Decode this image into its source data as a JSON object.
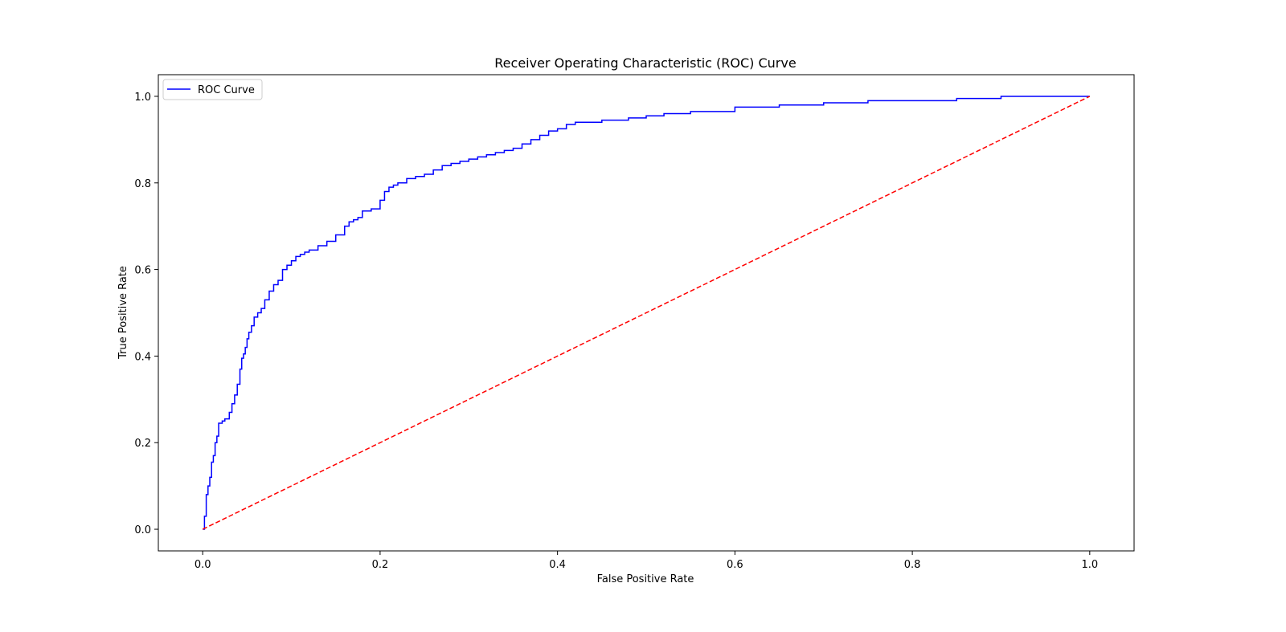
{
  "chart_data": {
    "type": "line",
    "title": "Receiver Operating Characteristic (ROC) Curve",
    "xlabel": "False Positive Rate",
    "ylabel": "True Positive Rate",
    "xlim": [
      -0.05,
      1.05
    ],
    "ylim": [
      -0.05,
      1.05
    ],
    "xticks": [
      0.0,
      0.2,
      0.4,
      0.6,
      0.8,
      1.0
    ],
    "xtick_labels": [
      "0.0",
      "0.2",
      "0.4",
      "0.6",
      "0.8",
      "1.0"
    ],
    "yticks": [
      0.0,
      0.2,
      0.4,
      0.6,
      0.8,
      1.0
    ],
    "ytick_labels": [
      "0.0",
      "0.2",
      "0.4",
      "0.6",
      "0.8",
      "1.0"
    ],
    "grid": false,
    "legend": {
      "placement": "upper-left",
      "entries": [
        "ROC Curve"
      ]
    },
    "series": [
      {
        "name": "ROC Curve",
        "color": "#0000ff",
        "style": "solid",
        "x": [
          0.0,
          0.002,
          0.004,
          0.006,
          0.008,
          0.01,
          0.012,
          0.014,
          0.016,
          0.018,
          0.02,
          0.022,
          0.025,
          0.03,
          0.033,
          0.036,
          0.039,
          0.042,
          0.044,
          0.046,
          0.048,
          0.05,
          0.052,
          0.055,
          0.058,
          0.062,
          0.066,
          0.07,
          0.075,
          0.08,
          0.085,
          0.09,
          0.095,
          0.1,
          0.105,
          0.11,
          0.115,
          0.12,
          0.13,
          0.14,
          0.15,
          0.16,
          0.165,
          0.17,
          0.175,
          0.18,
          0.19,
          0.2,
          0.205,
          0.21,
          0.215,
          0.22,
          0.23,
          0.24,
          0.25,
          0.26,
          0.27,
          0.28,
          0.29,
          0.3,
          0.31,
          0.32,
          0.33,
          0.34,
          0.35,
          0.36,
          0.37,
          0.38,
          0.39,
          0.4,
          0.41,
          0.42,
          0.45,
          0.48,
          0.5,
          0.52,
          0.55,
          0.6,
          0.65,
          0.7,
          0.75,
          0.8,
          0.85,
          0.9,
          1.0
        ],
        "y": [
          0.0,
          0.03,
          0.08,
          0.1,
          0.12,
          0.155,
          0.17,
          0.2,
          0.215,
          0.245,
          0.245,
          0.25,
          0.255,
          0.27,
          0.29,
          0.31,
          0.335,
          0.37,
          0.395,
          0.405,
          0.42,
          0.44,
          0.455,
          0.47,
          0.49,
          0.5,
          0.51,
          0.53,
          0.55,
          0.565,
          0.575,
          0.6,
          0.61,
          0.62,
          0.63,
          0.635,
          0.64,
          0.645,
          0.655,
          0.665,
          0.68,
          0.7,
          0.71,
          0.715,
          0.72,
          0.735,
          0.74,
          0.76,
          0.78,
          0.79,
          0.795,
          0.8,
          0.81,
          0.815,
          0.82,
          0.83,
          0.84,
          0.845,
          0.85,
          0.855,
          0.86,
          0.865,
          0.87,
          0.875,
          0.88,
          0.89,
          0.9,
          0.91,
          0.92,
          0.925,
          0.935,
          0.94,
          0.945,
          0.95,
          0.955,
          0.96,
          0.965,
          0.975,
          0.98,
          0.985,
          0.99,
          0.99,
          0.995,
          1.0,
          1.0
        ]
      },
      {
        "name": "",
        "color": "#ff0000",
        "style": "dashed",
        "x": [
          0.0,
          1.0
        ],
        "y": [
          0.0,
          1.0
        ]
      }
    ]
  }
}
